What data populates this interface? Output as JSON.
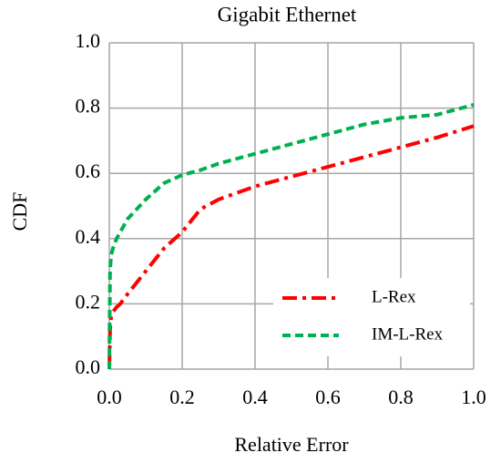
{
  "chart_data": {
    "type": "line",
    "title": "Gigabit Ethernet",
    "x_label": "Relative Error",
    "y_label": "CDF",
    "x": [
      0,
      0.002,
      0.005,
      0.01,
      0.02,
      0.03,
      0.05,
      0.1,
      0.15,
      0.2,
      0.25,
      0.3,
      0.4,
      0.5,
      0.6,
      0.7,
      0.8,
      0.9,
      1.0
    ],
    "series": [
      {
        "name": "L-Rex",
        "color": "#ff0000",
        "dash": "dash-dot",
        "values": [
          0,
          0.12,
          0.16,
          0.175,
          0.19,
          0.2,
          0.23,
          0.3,
          0.37,
          0.42,
          0.49,
          0.52,
          0.56,
          0.59,
          0.62,
          0.65,
          0.68,
          0.71,
          0.745
        ]
      },
      {
        "name": "IM-L-Rex",
        "color": "#00b050",
        "dash": "dashed",
        "values": [
          0,
          0.3,
          0.35,
          0.37,
          0.4,
          0.42,
          0.46,
          0.52,
          0.57,
          0.595,
          0.61,
          0.63,
          0.66,
          0.69,
          0.72,
          0.75,
          0.77,
          0.78,
          0.81
        ]
      }
    ],
    "xlim": [
      0,
      1
    ],
    "ylim": [
      0,
      1
    ],
    "xticks": [
      {
        "value": 0,
        "label": "0.0"
      },
      0.2,
      0.4,
      0.6,
      0.8,
      {
        "value": 1,
        "label": "1.0"
      }
    ],
    "yticks": [
      {
        "value": 0,
        "label": "0.0"
      },
      0.2,
      0.4,
      0.6,
      0.8,
      {
        "value": 1,
        "label": "1.0"
      }
    ],
    "grid": true,
    "legend": "lower-right"
  }
}
